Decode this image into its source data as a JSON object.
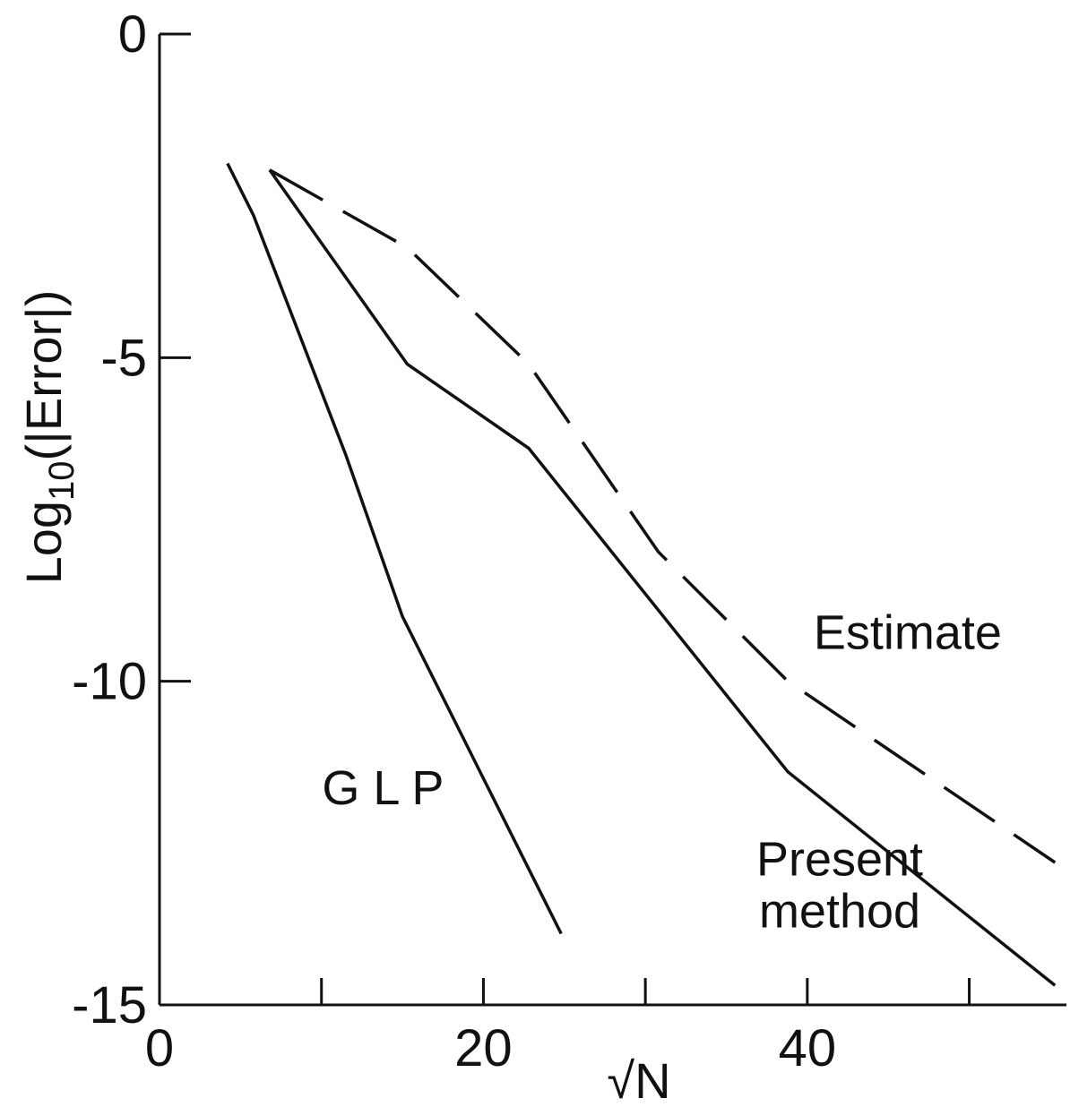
{
  "chart_data": {
    "type": "line",
    "xlabel": "√N",
    "ylabel": "Log10(|Error|)",
    "ylabel_parts": {
      "pre": "Log",
      "sub": "10",
      "post": "(|Error|)"
    },
    "xlim": [
      0,
      56
    ],
    "ylim": [
      -15,
      0
    ],
    "xticks": [
      0,
      10,
      20,
      30,
      40,
      50
    ],
    "xtick_labels": [
      {
        "value": 0,
        "label": "0"
      },
      {
        "value": 20,
        "label": "20"
      },
      {
        "value": 40,
        "label": "40"
      }
    ],
    "yticks": [
      0,
      -5,
      -10,
      -15
    ],
    "ytick_labels": [
      {
        "value": 0,
        "label": "0"
      },
      {
        "value": -5,
        "label": "-5"
      },
      {
        "value": -10,
        "label": "-10"
      },
      {
        "value": -15,
        "label": "-15"
      }
    ],
    "grid": false,
    "legend": "none",
    "series": [
      {
        "name": "GLP",
        "style": "solid",
        "points": [
          [
            4.2,
            -2.0
          ],
          [
            5.8,
            -2.8
          ],
          [
            11.5,
            -6.5
          ],
          [
            15.0,
            -9.0
          ],
          [
            20.0,
            -11.5
          ],
          [
            24.8,
            -13.9
          ]
        ],
        "label_lines": [
          "G L P"
        ],
        "label_at": [
          13.8,
          -11.9
        ]
      },
      {
        "name": "Present method",
        "style": "solid",
        "points": [
          [
            6.8,
            -2.1
          ],
          [
            15.3,
            -5.1
          ],
          [
            22.8,
            -6.4
          ],
          [
            30.8,
            -8.9
          ],
          [
            38.8,
            -11.4
          ],
          [
            55.3,
            -14.7
          ]
        ],
        "label_lines": [
          "Present",
          "method"
        ],
        "label_at": [
          42.0,
          -13.0
        ]
      },
      {
        "name": "Estimate",
        "style": "dashed",
        "points": [
          [
            6.8,
            -2.1
          ],
          [
            15.3,
            -3.3
          ],
          [
            22.8,
            -5.1
          ],
          [
            30.8,
            -8.0
          ],
          [
            38.8,
            -10.0
          ],
          [
            55.3,
            -12.8
          ]
        ],
        "label_lines": [
          "Estimate"
        ],
        "label_at": [
          46.2,
          -9.5
        ]
      }
    ]
  }
}
